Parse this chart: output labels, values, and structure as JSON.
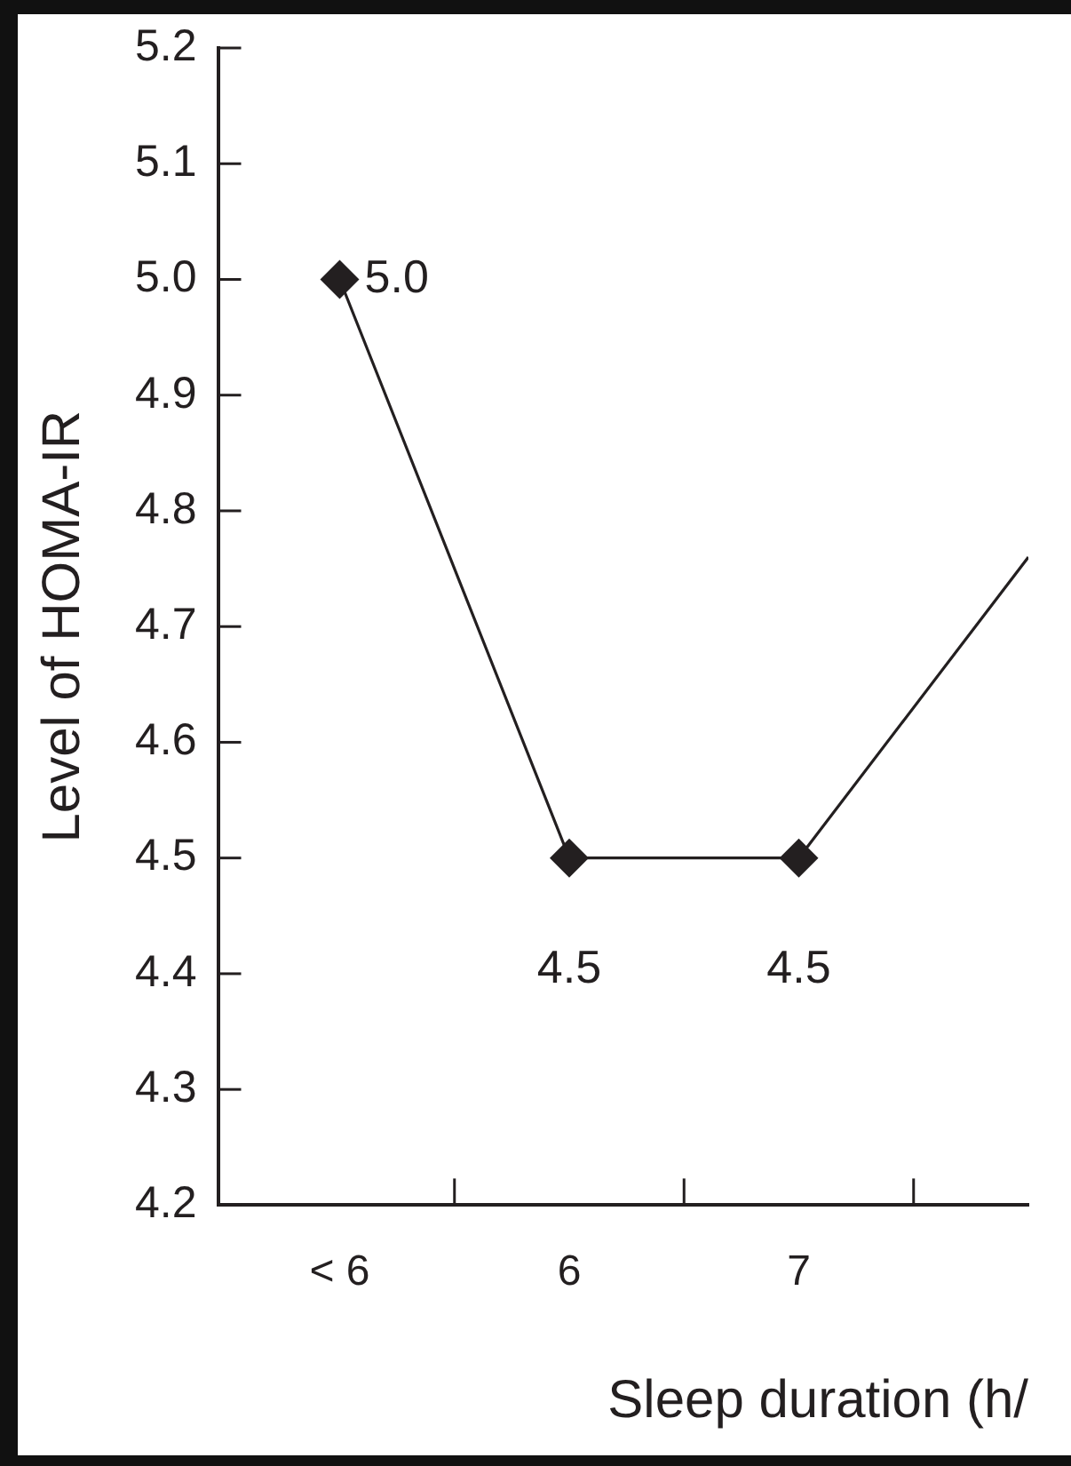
{
  "chart_data": {
    "type": "line",
    "xlabel": "Sleep duration (h/",
    "ylabel": "Level of HOMA-IR",
    "categories": [
      "< 6",
      "6",
      "7",
      null
    ],
    "series": [
      {
        "color": "#231f20",
        "values": [
          5.0,
          4.5,
          4.5,
          4.76
        ],
        "value_labels": [
          "5.0",
          "4.5",
          "4.5",
          null
        ]
      }
    ],
    "ylim": [
      4.2,
      5.2
    ],
    "yticks": [
      4.2,
      4.3,
      4.4,
      4.5,
      4.6,
      4.7,
      4.8,
      4.9,
      {
        "value": 5,
        "label": "5.0"
      },
      5.1,
      5.2
    ],
    "grid": false,
    "legend": false,
    "marker": "diamond",
    "line_style": "solid"
  }
}
